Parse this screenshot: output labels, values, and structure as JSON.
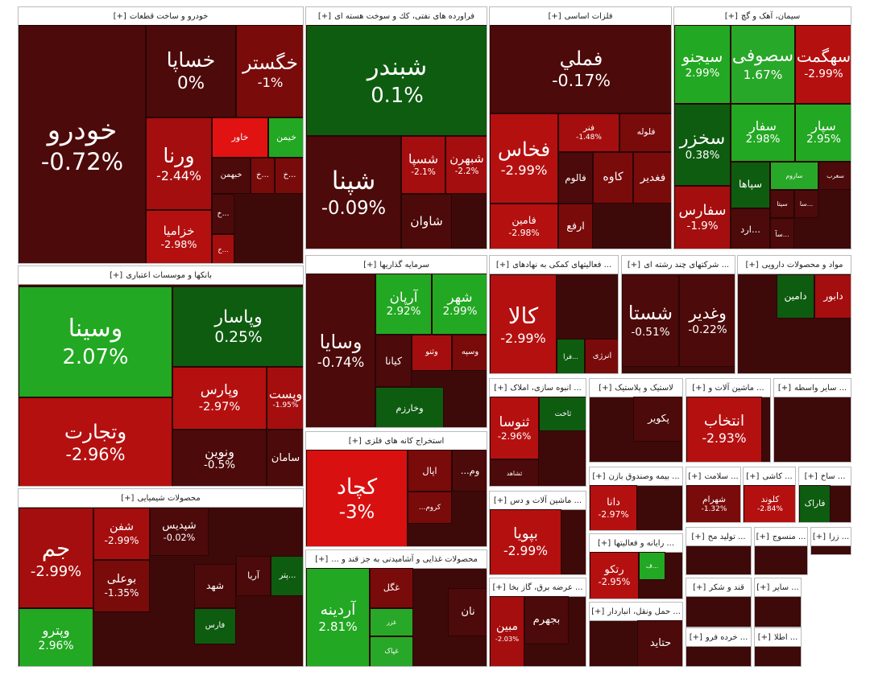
{
  "chart_data": {
    "type": "treemap",
    "groups": [
      {
        "title": "خودرو و ساخت قطعات",
        "button": "[+]",
        "labels": [
          "خودرو",
          "خساپا",
          "خگستر",
          "ورنا",
          "خزامیا",
          "خاور",
          "خیمن",
          "خبهمن",
          "خ...",
          "خ...",
          "خ...",
          "خ..."
        ],
        "values": [
          -0.72,
          0,
          -1,
          -2.44,
          -2.98,
          null,
          null,
          null,
          null,
          null,
          null,
          null
        ],
        "value_labels": [
          "-0.72%",
          "0%",
          "-1%",
          "-2.44%",
          "-2.98%",
          null,
          null,
          null,
          null,
          null,
          null,
          null
        ],
        "colors": [
          "#4d0a0a",
          "#4d0a0a",
          "#7a0b0b",
          "#a50e0e",
          "#b51010",
          "#e01212",
          "#22a822",
          "#4d0a0a",
          "#7a0b0b",
          "#7a0b0b",
          "#4d0a0a",
          "#a50e0e"
        ]
      },
      {
        "title": "فراورده های نفتی، کك و سوخت هسته ای",
        "button": "[+]",
        "labels": [
          "شبندر",
          "شپنا",
          "شسپا",
          "شبهرن",
          "شاوان"
        ],
        "values": [
          0.1,
          -0.09,
          -2.1,
          -2.2,
          null
        ],
        "value_labels": [
          "0.1%",
          "-0.09%",
          "-2.1%",
          "-2.2%",
          null
        ],
        "colors": [
          "#0e5c10",
          "#4d0a0a",
          "#a50e0e",
          "#a50e0e",
          "#4d0a0a"
        ]
      },
      {
        "title": "فلزات اساسی",
        "button": "[+]",
        "labels": [
          "فملي",
          "فخاس",
          "فنر",
          "فلوله",
          "فالوم",
          "کاوه",
          "فغدیر",
          "فامین",
          "ارفع"
        ],
        "values": [
          -0.17,
          -2.99,
          -1.48,
          null,
          null,
          null,
          null,
          -2.98,
          null
        ],
        "value_labels": [
          "-0.17%",
          "-2.99%",
          "-1.48%",
          null,
          null,
          null,
          null,
          "-2.98%",
          null
        ],
        "colors": [
          "#4d0a0a",
          "#b51010",
          "#a50e0e",
          "#7a0b0b",
          "#4d0a0a",
          "#7a0b0b",
          "#7a0b0b",
          "#b51010",
          "#7a0b0b"
        ]
      },
      {
        "title": "سیمان، آهک و گچ",
        "button": "[+]",
        "labels": [
          "سیجنو",
          "سصوفی",
          "سهگمت",
          "سخزر",
          "سفار",
          "سپار",
          "سفارس",
          "سپاها",
          "ساروم",
          "سغرب",
          "سیتا",
          "سا...",
          "ارد...",
          "سآ..."
        ],
        "values": [
          2.99,
          1.67,
          -2.99,
          0.38,
          2.98,
          2.95,
          -1.9,
          null,
          null,
          null,
          null,
          null,
          null,
          null
        ],
        "value_labels": [
          "2.99%",
          "1.67%",
          "-2.99%",
          "0.38%",
          "2.98%",
          "2.95%",
          "-1.9%",
          null,
          null,
          null,
          null,
          null,
          null,
          null
        ],
        "colors": [
          "#22a822",
          "#28a828",
          "#b51010",
          "#0e5c10",
          "#22a822",
          "#22a822",
          "#a50e0e",
          "#0e5c10",
          "#28a828",
          "#4d0a0a",
          "#4d0a0a",
          "#4d0a0a",
          "#4d0a0a",
          "#4d0a0a"
        ]
      },
      {
        "title": "بانکها و موسسات اعتباری",
        "button": "[+]",
        "labels": [
          "وسینا",
          "وتجارت",
          "وپاسار",
          "وپارس",
          "وپست",
          "ونوین",
          "سامان"
        ],
        "values": [
          2.07,
          -2.96,
          0.25,
          -2.97,
          -1.95,
          -0.5,
          null
        ],
        "value_labels": [
          "2.07%",
          "-2.96%",
          "0.25%",
          "-2.97%",
          "-1.95%",
          "-0.5%",
          null
        ],
        "colors": [
          "#22a822",
          "#b51010",
          "#0e5c10",
          "#b51010",
          "#a50e0e",
          "#4d0a0a",
          "#4d0a0a"
        ]
      },
      {
        "title": "سرمایه گذاریها",
        "button": "[+]",
        "labels": [
          "وسایا",
          "آرپان",
          "شهر",
          "کیانا",
          "وثنو",
          "وسپه",
          "وخارزم"
        ],
        "values": [
          -0.74,
          2.92,
          2.99,
          null,
          null,
          null,
          null
        ],
        "value_labels": [
          "-0.74%",
          "2.92%",
          "2.99%",
          null,
          null,
          null,
          null
        ],
        "colors": [
          "#4d0a0a",
          "#22a822",
          "#22a822",
          "#4d0a0a",
          "#a50e0e",
          "#7a0b0b",
          "#0e5c10"
        ]
      },
      {
        "title": "استخراج کانه های فلزی",
        "button": "[+]",
        "labels": [
          "کچاد",
          "اپال",
          "...وم",
          "...کروم"
        ],
        "values": [
          -3,
          null,
          null,
          null
        ],
        "value_labels": [
          "-3%",
          null,
          null,
          null
        ],
        "colors": [
          "#d81010",
          "#7a0b0b",
          "#4d0a0a",
          "#7a0b0b"
        ]
      },
      {
        "title": "محصولات غذایی و آشامیدنی به جز قند و ...",
        "button": "[+]",
        "labels": [
          "آردینه",
          "غگل",
          "غزر",
          "غپاک",
          "نان"
        ],
        "values": [
          2.81,
          null,
          null,
          null,
          null
        ],
        "value_labels": [
          "2.81%",
          null,
          null,
          null,
          null
        ],
        "colors": [
          "#22a822",
          "#7a0b0b",
          "#28a828",
          "#28a828",
          "#4d0a0a"
        ]
      },
      {
        "title": "محصولات شیمیایی",
        "button": "[+]",
        "labels": [
          "جم",
          "وپترو",
          "شفن",
          "بوعلی",
          "شپدیس",
          "شهد",
          "آریا",
          "پتر...",
          "فارس"
        ],
        "values": [
          -2.99,
          2.96,
          -2.99,
          -1.35,
          -0.02,
          null,
          null,
          null,
          null
        ],
        "value_labels": [
          "-2.99%",
          "2.96%",
          "-2.99%",
          "-1.35%",
          "-0.02%",
          null,
          null,
          null,
          null
        ],
        "colors": [
          "#a50e0e",
          "#22a822",
          "#a50e0e",
          "#7a0b0b",
          "#4d0a0a",
          "#4d0a0a",
          "#4d0a0a",
          "#0e5c10",
          "#0e5c10"
        ]
      },
      {
        "title": "... فعالیتهای کمکی به نهادهای",
        "button": "[+]",
        "labels": [
          "کالا",
          "فرا...",
          "انرژی"
        ],
        "values": [
          -2.99,
          null,
          null
        ],
        "value_labels": [
          "-2.99%",
          null,
          null
        ],
        "colors": [
          "#b51010",
          "#0e5c10",
          "#7a0b0b"
        ]
      },
      {
        "title": "... شرکتهای چند رشته ای",
        "button": "[+]",
        "labels": [
          "شستا",
          "وغدیر"
        ],
        "values": [
          -0.51,
          -0.22
        ],
        "value_labels": [
          "-0.51%",
          "-0.22%"
        ],
        "colors": [
          "#4d0a0a",
          "#4d0a0a"
        ]
      },
      {
        "title": "مواد و محصولات دارویی",
        "button": "[+]",
        "labels": [
          "دامین",
          "دابور"
        ],
        "values": [
          null,
          null
        ],
        "value_labels": [
          null,
          null
        ],
        "colors": [
          "#0e5c10",
          "#a50e0e"
        ]
      },
      {
        "title": "... انبوه سازی، املاک",
        "button": "[+]",
        "labels": [
          "ثنوسا",
          "ثاخت",
          "ثشاهد"
        ],
        "values": [
          -2.96,
          null,
          null
        ],
        "value_labels": [
          "-2.96%",
          null,
          null
        ],
        "colors": [
          "#b51010",
          "#0e5c10",
          "#4d0a0a"
        ]
      },
      {
        "title": "لاستیک و پلاستیک",
        "button": "[+]",
        "labels": [
          "پکویر"
        ],
        "values": [
          null
        ],
        "value_labels": [
          null
        ],
        "colors": [
          "#4d0a0a"
        ]
      },
      {
        "title": "... ماشین آلات و",
        "button": "[+]",
        "labels": [
          "انتخاب"
        ],
        "values": [
          -2.93
        ],
        "value_labels": [
          "-2.93%"
        ],
        "colors": [
          "#b51010"
        ]
      },
      {
        "title": "... سایر واسطه",
        "button": "[+]",
        "labels": [],
        "values": [],
        "value_labels": [],
        "colors": []
      },
      {
        "title": "... بیمه وصندوق بازن",
        "button": "[+]",
        "labels": [
          "دانا"
        ],
        "values": [
          -2.97
        ],
        "value_labels": [
          "-2.97%"
        ],
        "colors": [
          "#b51010"
        ]
      },
      {
        "title": "... سلامت",
        "button": "[+]",
        "labels": [
          "شهرام"
        ],
        "values": [
          -1.32
        ],
        "value_labels": [
          "-1.32%"
        ],
        "colors": [
          "#7a0b0b"
        ]
      },
      {
        "title": "... کاشی",
        "button": "[+]",
        "labels": [
          "کلوند"
        ],
        "values": [
          -2.84
        ],
        "value_labels": [
          "-2.84%"
        ],
        "colors": [
          "#b51010"
        ]
      },
      {
        "title": "... ساخ",
        "button": "[+]",
        "labels": [
          "فاراک"
        ],
        "values": [
          null
        ],
        "value_labels": [
          null
        ],
        "colors": [
          "#0e5c10"
        ]
      },
      {
        "title": "... ماشین آلات و دس",
        "button": "[+]",
        "labels": [
          "بپویا"
        ],
        "values": [
          -2.99
        ],
        "value_labels": [
          "-2.99%"
        ],
        "colors": [
          "#b51010"
        ]
      },
      {
        "title": "... رایانه و فعالیتها",
        "button": "[+]",
        "labels": [
          "رتکو",
          "ف..."
        ],
        "values": [
          -2.95,
          null
        ],
        "value_labels": [
          "-2.95%",
          null
        ],
        "colors": [
          "#b51010",
          "#22a822"
        ]
      },
      {
        "title": "... عرضه برق، گاز بخا",
        "button": "[+]",
        "labels": [
          "مبین",
          "بجهرم"
        ],
        "values": [
          -2.03,
          null
        ],
        "value_labels": [
          "-2.03%",
          null
        ],
        "colors": [
          "#a50e0e",
          "#4d0a0a"
        ]
      },
      {
        "title": "... حمل ونقل، انباردار",
        "button": "[+]",
        "labels": [
          "حتاید"
        ],
        "values": [
          null
        ],
        "value_labels": [
          null
        ],
        "colors": [
          "#4d0a0a"
        ]
      },
      {
        "title": "... تولید مح",
        "button": "[+]",
        "labels": [],
        "values": [],
        "value_labels": [],
        "colors": []
      },
      {
        "title": "... منسوج",
        "button": "[+]",
        "labels": [],
        "values": [],
        "value_labels": [],
        "colors": []
      },
      {
        "title": "... زرا",
        "button": "[+]",
        "labels": [],
        "values": [],
        "value_labels": [],
        "colors": []
      },
      {
        "title": "قند و شکر",
        "button": "[+]",
        "labels": [],
        "values": [],
        "value_labels": [],
        "colors": []
      },
      {
        "title": "... سایر",
        "button": "[+]",
        "labels": [],
        "values": [],
        "value_labels": [],
        "colors": []
      },
      {
        "title": "... خرده فرو",
        "button": "[+]",
        "labels": [],
        "values": [],
        "value_labels": [],
        "colors": []
      },
      {
        "title": "... اطلا",
        "button": "[+]",
        "labels": [],
        "values": [],
        "value_labels": [],
        "colors": []
      }
    ]
  }
}
